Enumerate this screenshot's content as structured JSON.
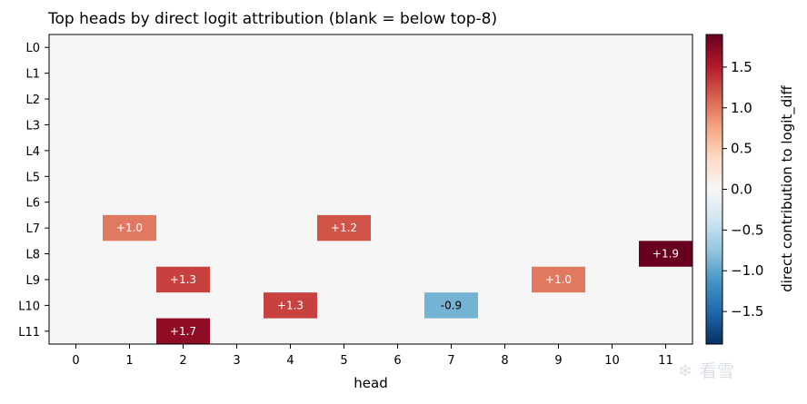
{
  "chart_data": {
    "type": "heatmap",
    "title": "Top heads by direct logit attribution (blank = below top-8)",
    "xlabel": "head",
    "ylabel": "",
    "x_categories": [
      "0",
      "1",
      "2",
      "3",
      "4",
      "5",
      "6",
      "7",
      "8",
      "9",
      "10",
      "11"
    ],
    "y_categories": [
      "L0",
      "L1",
      "L2",
      "L3",
      "L4",
      "L5",
      "L6",
      "L7",
      "L8",
      "L9",
      "L10",
      "L11"
    ],
    "cells": [
      {
        "layer": 7,
        "head": 1,
        "value": 1.0,
        "label": "+1.0"
      },
      {
        "layer": 7,
        "head": 5,
        "value": 1.2,
        "label": "+1.2"
      },
      {
        "layer": 8,
        "head": 11,
        "value": 1.9,
        "label": "+1.9"
      },
      {
        "layer": 9,
        "head": 2,
        "value": 1.3,
        "label": "+1.3"
      },
      {
        "layer": 9,
        "head": 9,
        "value": 1.0,
        "label": "+1.0"
      },
      {
        "layer": 10,
        "head": 4,
        "value": 1.3,
        "label": "+1.3"
      },
      {
        "layer": 10,
        "head": 7,
        "value": -0.9,
        "label": "-0.9"
      },
      {
        "layer": 11,
        "head": 2,
        "value": 1.7,
        "label": "+1.7"
      }
    ],
    "blank_color": "#f5f5f5",
    "colormap": "RdBu_r",
    "vmin": -1.9,
    "vmax": 1.9,
    "colorbar": {
      "label": "direct contribution to logit_diff",
      "ticks": [
        1.5,
        1.0,
        0.5,
        0.0,
        -0.5,
        -1.0,
        -1.5
      ],
      "tick_labels": [
        "1.5",
        "1.0",
        "0.5",
        "0.0",
        "−0.5",
        "−1.0",
        "−1.5"
      ]
    },
    "grid": false
  },
  "watermark": "看雪"
}
